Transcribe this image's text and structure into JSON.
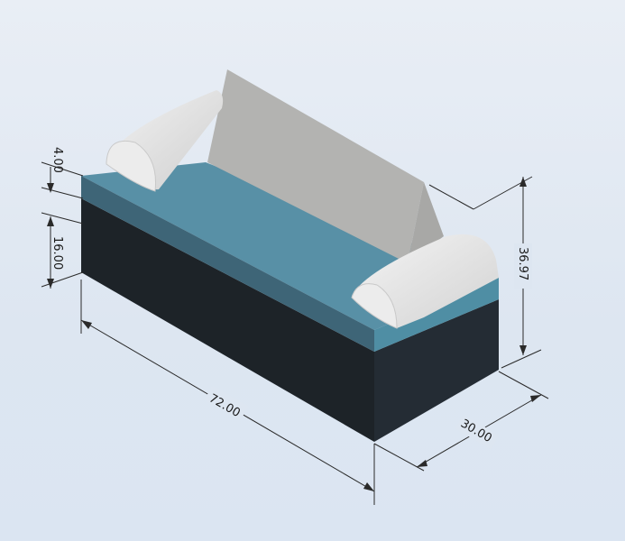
{
  "model": {
    "colors": {
      "base_front": "#1d2328",
      "base_side": "#242c34",
      "base_top_edge": "#3f6576",
      "cushion_top": "#5890a6",
      "cushion_front": "#3e6577",
      "cushion_side": "#4f8ea4",
      "armrest_light": "#ececec",
      "armrest_shade": "#c9c9c9",
      "backrest_face": "#b3b3b1",
      "backrest_end": "#a8a8a6"
    }
  },
  "dimensions": {
    "arm_height": "4.00",
    "base_height": "16.00",
    "length": "72.00",
    "depth": "30.00",
    "overall_height": "36.97"
  }
}
